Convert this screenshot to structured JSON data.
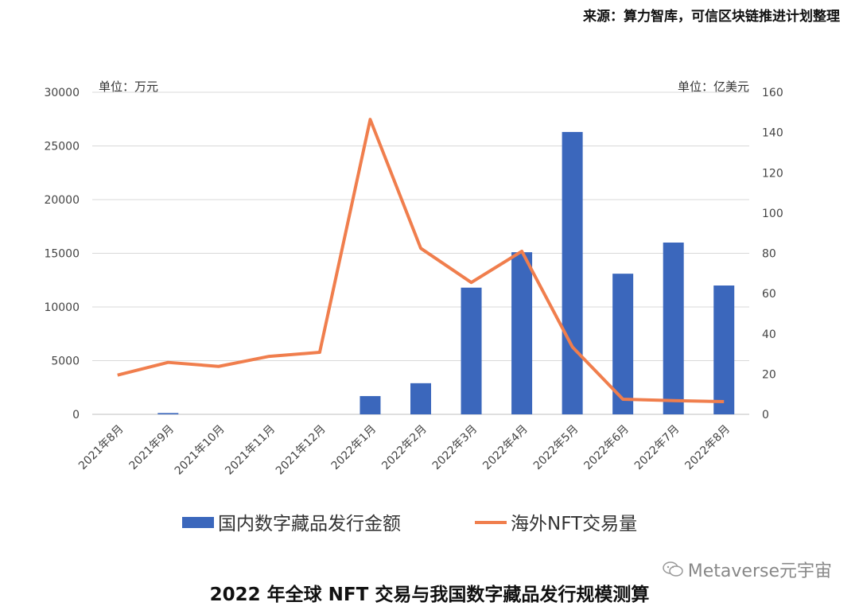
{
  "source_note": "来源：算力智库，可信区块链推进计划整理",
  "watermark": "Metaverse元宇宙",
  "bottom_title": "2022 年全球 NFT 交易与我国数字藏品发行规模测算",
  "colors": {
    "bar": "#3B67BC",
    "line": "#F07E4D",
    "grid": "#D9D9D9"
  },
  "chart_data": {
    "type": "bar+line",
    "categories": [
      "2021年8月",
      "2021年9月",
      "2021年10月",
      "2021年11月",
      "2021年12月",
      "2022年1月",
      "2022年2月",
      "2022年3月",
      "2022年4月",
      "2022年5月",
      "2022年6月",
      "2022年7月",
      "2022年8月"
    ],
    "series": [
      {
        "name": "国内数字藏品发行金额",
        "type": "bar",
        "axis": "left",
        "values": [
          0,
          120,
          0,
          0,
          0,
          1700,
          2900,
          11800,
          15100,
          26300,
          13100,
          16000,
          12000
        ]
      },
      {
        "name": "海外NFT交易量",
        "type": "line",
        "axis": "right",
        "values": [
          19.5,
          25.8,
          23.8,
          28.8,
          30.8,
          146.5,
          82.5,
          65.5,
          81.0,
          33.5,
          7.5,
          6.8,
          6.3
        ]
      }
    ],
    "y_left": {
      "unit_label": "单位：万元",
      "ylim": [
        0,
        30000
      ],
      "ticks": [
        0,
        5000,
        10000,
        15000,
        20000,
        25000,
        30000
      ]
    },
    "y_right": {
      "unit_label": "单位：亿美元",
      "ylim": [
        0,
        160
      ],
      "ticks": [
        0,
        20,
        40,
        60,
        80,
        100,
        120,
        140,
        160
      ]
    },
    "grid": true,
    "legend_position": "bottom"
  }
}
